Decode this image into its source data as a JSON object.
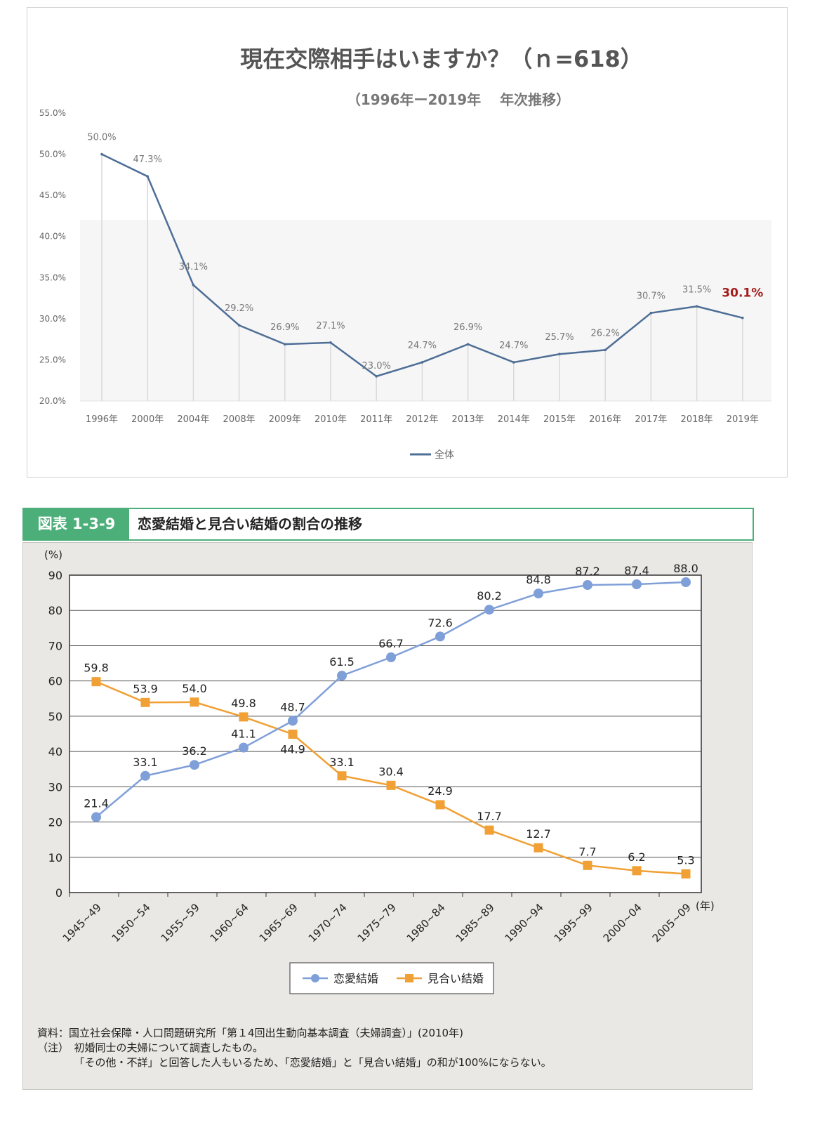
{
  "chart_data": [
    {
      "type": "line",
      "title": "現在交際相手はいますか？（ｎ=618）",
      "subtitle": "（1996年ー2019年　 年次推移）",
      "categories": [
        "1996年",
        "2000年",
        "2004年",
        "2008年",
        "2009年",
        "2010年",
        "2011年",
        "2012年",
        "2013年",
        "2014年",
        "2015年",
        "2016年",
        "2017年",
        "2018年",
        "2019年"
      ],
      "series": [
        {
          "name": "全体",
          "values": [
            50.0,
            47.3,
            34.1,
            29.2,
            26.9,
            27.1,
            23.0,
            24.7,
            26.9,
            24.7,
            25.7,
            26.2,
            30.7,
            31.5,
            30.1
          ]
        }
      ],
      "data_labels": [
        "50.0%",
        "47.3%",
        "34.1%",
        "29.2%",
        "26.9%",
        "27.1%",
        "23.0%",
        "24.7%",
        "26.9%",
        "24.7%",
        "25.7%",
        "26.2%",
        "30.7%",
        "31.5%",
        "30.1%"
      ],
      "ylim": [
        20,
        55
      ],
      "yticks": [
        "20.0%",
        "25.0%",
        "30.0%",
        "35.0%",
        "40.0%",
        "45.0%",
        "50.0%",
        "55.0%"
      ],
      "legend_position": "bottom",
      "colors": {
        "line": "#4e6e96",
        "highlight_label": "#a31b1b"
      }
    },
    {
      "type": "line",
      "figure_label": "図表 1-3-9",
      "title": "恋愛結婚と見合い結婚の割合の推移",
      "ylabel": "(%)",
      "xlabel": "(年)",
      "categories": [
        "1945~49",
        "1950~54",
        "1955~59",
        "1960~64",
        "1965~69",
        "1970~74",
        "1975~79",
        "1980~84",
        "1985~89",
        "1990~94",
        "1995~99",
        "2000~04",
        "2005~09"
      ],
      "series": [
        {
          "name": "恋愛結婚",
          "values": [
            21.4,
            33.1,
            36.2,
            41.1,
            48.7,
            61.5,
            66.7,
            72.6,
            80.2,
            84.8,
            87.2,
            87.4,
            88.0
          ],
          "labels": [
            "21.4",
            "33.1",
            "36.2",
            "41.1",
            "48.7",
            "61.5",
            "66.7",
            "72.6",
            "80.2",
            "84.8",
            "87.2",
            "87.4",
            "88.0"
          ],
          "color": "#7f9fd8"
        },
        {
          "name": "見合い結婚",
          "values": [
            59.8,
            53.9,
            54.0,
            49.8,
            44.9,
            33.1,
            30.4,
            24.9,
            17.7,
            12.7,
            7.7,
            6.2,
            5.3
          ],
          "labels": [
            "59.8",
            "53.9",
            "54.0",
            "49.8",
            "44.9",
            "33.1",
            "30.4",
            "24.9",
            "17.7",
            "12.7",
            "7.7",
            "6.2",
            "5.3"
          ],
          "color": "#f0a034"
        }
      ],
      "ylim": [
        0,
        90
      ],
      "yticks": [
        "0",
        "10",
        "20",
        "30",
        "40",
        "50",
        "60",
        "70",
        "80",
        "90"
      ],
      "legend_position": "bottom",
      "grid": true
    }
  ],
  "notes": [
    "資料：国立社会保障・人口問題研究所「第１4回出生動向基本調査（夫婦調査）」(2010年)",
    "（注）　初婚同士の夫婦について調査したもの。",
    "　　　　「その他・不詳」と回答した人もいるため、「恋愛結婚」と「見合い結婚」の和が100%にならない。"
  ]
}
